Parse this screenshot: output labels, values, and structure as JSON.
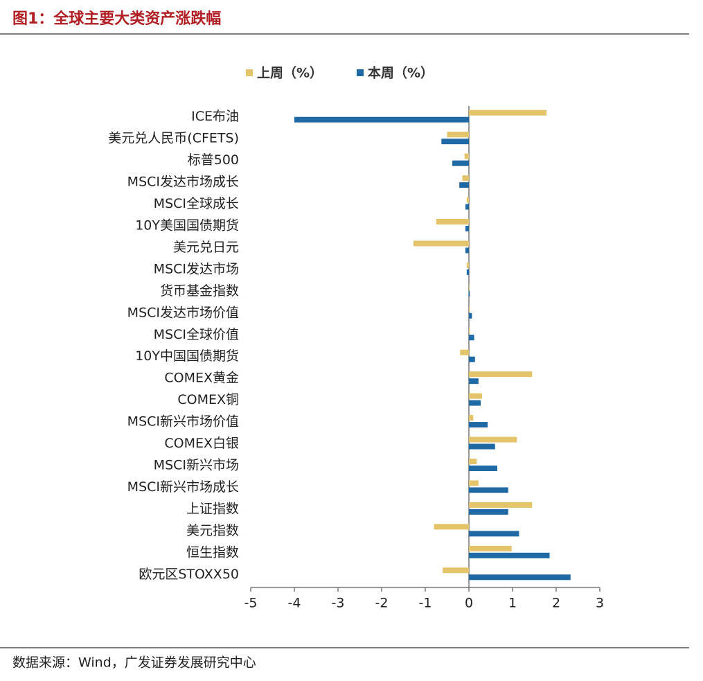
{
  "chart_data": {
    "type": "hbar",
    "title": "图1：全球主要大类资产涨跌幅",
    "source": "数据来源：Wind，广发证券发展研究中心",
    "categories": [
      "ICE布油",
      "美元兑人民币(CFETS)",
      "标普500",
      "MSCI发达市场成长",
      "MSCI全球成长",
      "10Y美国国债期货",
      "美元兑日元",
      "MSCI发达市场",
      "货币基金指数",
      "MSCI发达市场价值",
      "MSCI全球价值",
      "10Y中国国债期货",
      "COMEX黄金",
      "COMEX铜",
      "MSCI新兴市场价值",
      "COMEX白银",
      "MSCI新兴市场",
      "MSCI新兴市场成长",
      "上证指数",
      "美元指数",
      "恒生指数",
      "欧元区STOXX50"
    ],
    "series": [
      {
        "name": "上周（%）",
        "color": "#e3c46a",
        "values": [
          1.78,
          -0.5,
          -0.1,
          -0.15,
          -0.05,
          -0.75,
          -1.27,
          -0.05,
          0.01,
          0.02,
          0.02,
          -0.2,
          1.45,
          0.3,
          0.1,
          1.1,
          0.18,
          0.22,
          1.45,
          -0.8,
          0.98,
          -0.6
        ]
      },
      {
        "name": "本周（%）",
        "color": "#1f6aa5",
        "values": [
          -4.0,
          -0.63,
          -0.38,
          -0.22,
          -0.08,
          -0.08,
          -0.08,
          -0.05,
          0.02,
          0.07,
          0.12,
          0.14,
          0.22,
          0.27,
          0.43,
          0.6,
          0.65,
          0.9,
          0.9,
          1.15,
          1.85,
          2.33
        ]
      }
    ],
    "xlim": [
      -5,
      3
    ],
    "xticks": [
      -5,
      -4,
      -3,
      -2,
      -1,
      0,
      1,
      2,
      3
    ]
  }
}
